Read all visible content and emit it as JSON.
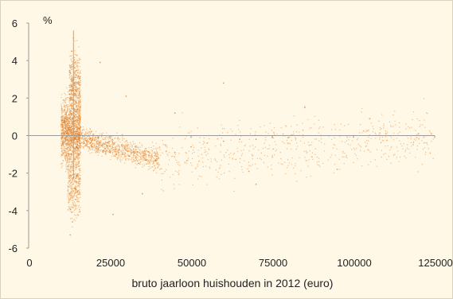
{
  "chart_data": {
    "type": "scatter",
    "title": "",
    "xlabel": "bruto jaarloon huishouden in 2012 (euro)",
    "ylabel": "%",
    "xlim": [
      0,
      125000
    ],
    "ylim": [
      -6,
      6
    ],
    "x_ticks": [
      "0",
      "25000",
      "50000",
      "75000",
      "100000",
      "125000"
    ],
    "y_ticks": [
      "6",
      "4",
      "2",
      "0",
      "-2",
      "-4",
      "-6"
    ],
    "x_tick_values": [
      0,
      25000,
      50000,
      75000,
      100000,
      125000
    ],
    "y_tick_values": [
      6,
      4,
      2,
      0,
      -2,
      -4,
      -6
    ],
    "grid": false,
    "point_color": "#e07a1f",
    "reference_line_x": 13800,
    "series": [
      {
        "values_description_clusters": [
          {
            "x_range": [
              10000,
              16000
            ],
            "y_center": 0.2,
            "y_spread": 1.6
          },
          {
            "x_range": [
              12500,
              16000
            ],
            "y_center": 2.5,
            "y_spread": 1.8
          },
          {
            "x_range": [
              12000,
              16000
            ],
            "y_center": -2.5,
            "y_spread": 1.8
          },
          {
            "x_range": [
              16000,
              40000
            ],
            "y_center": -0.9,
            "y_spread": 0.6
          },
          {
            "x_range": [
              40000,
              125000
            ],
            "y_center": -0.3,
            "y_spread": 1.0
          }
        ],
        "sample_points": [
          [
            10500,
            0.5
          ],
          [
            11000,
            0.1
          ],
          [
            11500,
            -0.2
          ],
          [
            12000,
            0.4
          ],
          [
            12500,
            0.0
          ],
          [
            13000,
            0.3
          ],
          [
            13500,
            0.6
          ],
          [
            14000,
            0.2
          ],
          [
            14500,
            -0.1
          ],
          [
            15000,
            0.1
          ],
          [
            13200,
            4.5
          ],
          [
            13800,
            5.2
          ],
          [
            14200,
            3.6
          ],
          [
            13600,
            2.4
          ],
          [
            14600,
            1.8
          ],
          [
            13000,
            -3.2
          ],
          [
            13500,
            -4.6
          ],
          [
            14100,
            -2.8
          ],
          [
            12800,
            -5.3
          ],
          [
            14800,
            -2.1
          ],
          [
            17000,
            -0.2
          ],
          [
            19000,
            -0.4
          ],
          [
            21000,
            -0.6
          ],
          [
            23000,
            -0.8
          ],
          [
            25000,
            -0.9
          ],
          [
            27000,
            -1.0
          ],
          [
            29000,
            -1.0
          ],
          [
            31000,
            -1.1
          ],
          [
            33000,
            -1.2
          ],
          [
            36000,
            -1.3
          ],
          [
            40000,
            -1.2
          ],
          [
            45000,
            -0.9
          ],
          [
            50000,
            -0.6
          ],
          [
            55000,
            -0.4
          ],
          [
            60000,
            -0.3
          ],
          [
            65000,
            -0.2
          ],
          [
            70000,
            -0.2
          ],
          [
            75000,
            -0.1
          ],
          [
            80000,
            -0.1
          ],
          [
            90000,
            0.0
          ],
          [
            100000,
            0.0
          ],
          [
            110000,
            0.1
          ],
          [
            120000,
            0.1
          ],
          [
            124000,
            0.1
          ],
          [
            45000,
            1.2
          ],
          [
            60000,
            2.8
          ],
          [
            70000,
            -2.6
          ],
          [
            85000,
            1.5
          ],
          [
            95000,
            -1.8
          ],
          [
            30000,
            2.1
          ],
          [
            35000,
            -3.1
          ],
          [
            22000,
            3.9
          ],
          [
            26000,
            -4.2
          ],
          [
            105000,
            0.9
          ]
        ]
      }
    ]
  }
}
